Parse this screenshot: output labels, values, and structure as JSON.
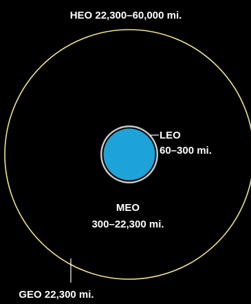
{
  "diagram": {
    "colors": {
      "background": "#000000",
      "geo_orbit": "#f2e88c",
      "earth_fill": "#1ea3d8",
      "earth_ring": "#c8c8c8",
      "text": "#ffffff"
    },
    "labels": {
      "heo": "HEO 22,300–60,000 mi.",
      "leo_name": "LEO",
      "leo_range": "60–300 mi.",
      "meo_name": "MEO",
      "meo_range": "300–22,300 mi.",
      "geo": "GEO 22,300 mi."
    }
  }
}
